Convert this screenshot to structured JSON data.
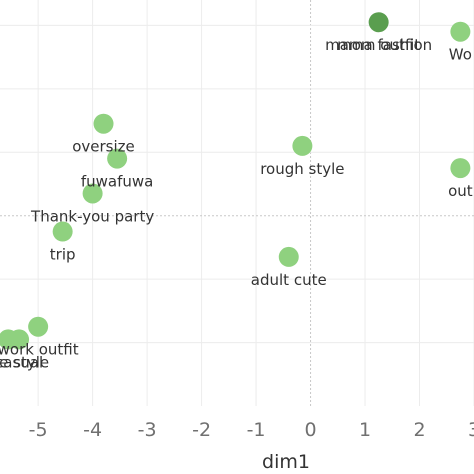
{
  "chart_data": {
    "type": "scatter",
    "xlabel": "dim1",
    "ylabel": "",
    "title": "",
    "xlim": [
      -5.7,
      3.0
    ],
    "ylim": [
      -3.0,
      3.4
    ],
    "x_ticks": [
      -5,
      -4,
      -3,
      -2,
      -1,
      0,
      1,
      2,
      3
    ],
    "x_tick_labels": [
      "-5",
      "-4",
      "-3",
      "-2",
      "-1",
      "0",
      "1",
      "2",
      "3"
    ],
    "grid": true,
    "colors": {
      "point": "#8fd17f",
      "point_dark": "#5a9e4f",
      "grid": "#ececec",
      "zero_line": "#c8c8c8"
    },
    "points": [
      {
        "label": "mom outfit",
        "x": 1.25,
        "y": 3.05,
        "color": "#5a9e4f"
      },
      {
        "label": "mama fashion",
        "x": 1.25,
        "y": 3.05,
        "color": "#5a9e4f"
      },
      {
        "label": "oversize",
        "x": -3.8,
        "y": 1.45,
        "color": "#8fd17f"
      },
      {
        "label": "fuwafuwa",
        "x": -3.55,
        "y": 0.9,
        "color": "#8fd17f"
      },
      {
        "label": "rough style",
        "x": -0.15,
        "y": 1.1,
        "color": "#8fd17f"
      },
      {
        "label": "Thank-you party",
        "x": -4.0,
        "y": 0.35,
        "color": "#8fd17f"
      },
      {
        "label": "trip",
        "x": -4.55,
        "y": -0.25,
        "color": "#8fd17f"
      },
      {
        "label": "adult cute",
        "x": -0.4,
        "y": -0.65,
        "color": "#8fd17f"
      },
      {
        "label": "work outfit",
        "x": -5.0,
        "y": -1.75,
        "color": "#8fd17f"
      },
      {
        "label": "casual",
        "x": -5.35,
        "y": -1.95,
        "color": "#8fd17f"
      },
      {
        "label": "office style",
        "x": -5.55,
        "y": -1.95,
        "color": "#8fd17f"
      },
      {
        "label": "Wo",
        "x": 2.75,
        "y": 2.9,
        "color": "#8fd17f"
      },
      {
        "label": "out",
        "x": 2.75,
        "y": 0.75,
        "color": "#8fd17f"
      }
    ]
  }
}
